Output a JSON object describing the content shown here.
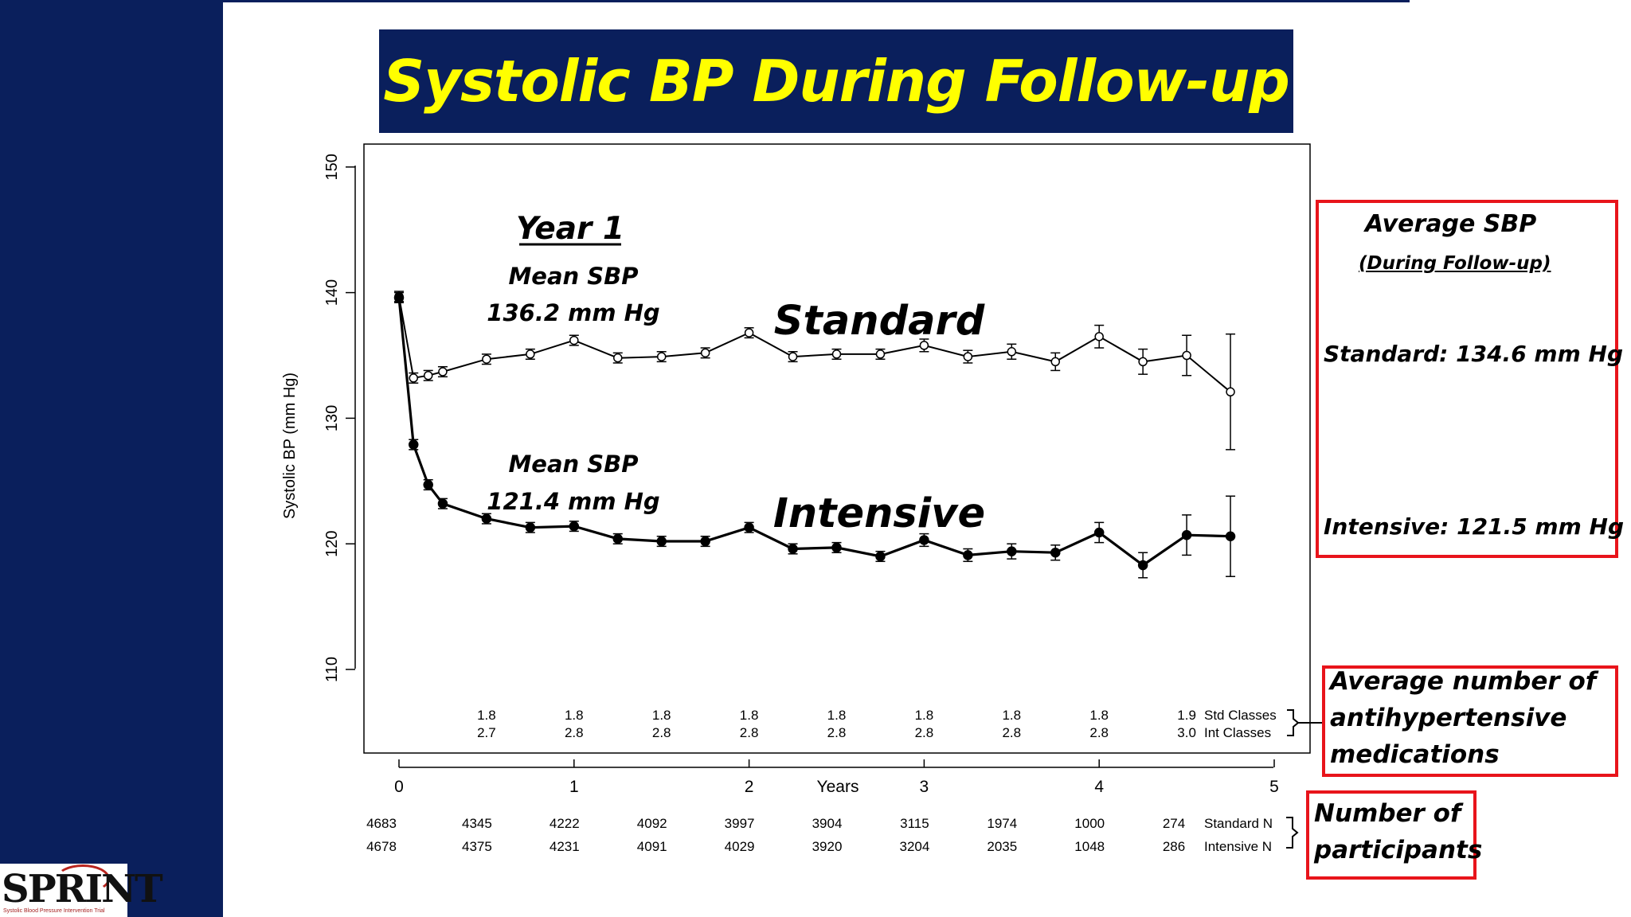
{
  "slide": {
    "title": "Systolic BP During Follow-up",
    "colors": {
      "sidebar": "#0a1f5c",
      "title_text": "#ffff00",
      "callout_border": "#e8141b"
    }
  },
  "annotations": {
    "year1_heading": "Year 1",
    "standard_mean_label": "Mean SBP",
    "standard_mean_value": "136.2 mm Hg",
    "intensive_mean_label": "Mean SBP",
    "intensive_mean_value": "121.4 mm Hg",
    "standard_label": "Standard",
    "intensive_label": "Intensive"
  },
  "callouts": {
    "avg_sbp": {
      "title": "Average SBP",
      "subtitle": "(During Follow-up)",
      "standard": "Standard: 134.6 mm Hg",
      "intensive": "Intensive: 121.5 mm Hg"
    },
    "medications": {
      "line1": "Average number of",
      "line2": "antihypertensive",
      "line3": "medications"
    },
    "participants": {
      "line1": "Number of",
      "line2": "participants"
    }
  },
  "logo": {
    "text": "SPRINT",
    "tagline": "Systolic Blood Pressure Intervention Trial"
  },
  "chart_data": {
    "type": "line",
    "ylabel": "Systolic BP (mm Hg)",
    "xlabel": "Years",
    "ylim": [
      105,
      151
    ],
    "xlim": [
      -0.2,
      5.2
    ],
    "yticks": [
      110,
      120,
      130,
      140,
      150
    ],
    "xticks": [
      0,
      1,
      2,
      3,
      4,
      5
    ],
    "series": [
      {
        "name": "Standard",
        "marker": "open-circle",
        "points": [
          {
            "x": 0,
            "y": 139.7,
            "lo": 139.3,
            "hi": 140.1
          },
          {
            "x": 0.083,
            "y": 133.2,
            "lo": 132.8,
            "hi": 133.6
          },
          {
            "x": 0.167,
            "y": 133.4,
            "lo": 133.0,
            "hi": 133.8
          },
          {
            "x": 0.25,
            "y": 133.7,
            "lo": 133.3,
            "hi": 134.1
          },
          {
            "x": 0.5,
            "y": 134.7,
            "lo": 134.3,
            "hi": 135.1
          },
          {
            "x": 0.75,
            "y": 135.1,
            "lo": 134.7,
            "hi": 135.5
          },
          {
            "x": 1,
            "y": 136.2,
            "lo": 135.8,
            "hi": 136.6
          },
          {
            "x": 1.25,
            "y": 134.8,
            "lo": 134.4,
            "hi": 135.2
          },
          {
            "x": 1.5,
            "y": 134.9,
            "lo": 134.5,
            "hi": 135.3
          },
          {
            "x": 1.75,
            "y": 135.2,
            "lo": 134.8,
            "hi": 135.6
          },
          {
            "x": 2,
            "y": 136.8,
            "lo": 136.4,
            "hi": 137.2
          },
          {
            "x": 2.25,
            "y": 134.9,
            "lo": 134.5,
            "hi": 135.3
          },
          {
            "x": 2.5,
            "y": 135.1,
            "lo": 134.7,
            "hi": 135.5
          },
          {
            "x": 2.75,
            "y": 135.1,
            "lo": 134.7,
            "hi": 135.5
          },
          {
            "x": 3,
            "y": 135.8,
            "lo": 135.3,
            "hi": 136.3
          },
          {
            "x": 3.25,
            "y": 134.9,
            "lo": 134.4,
            "hi": 135.4
          },
          {
            "x": 3.5,
            "y": 135.3,
            "lo": 134.7,
            "hi": 135.9
          },
          {
            "x": 3.75,
            "y": 134.5,
            "lo": 133.8,
            "hi": 135.2
          },
          {
            "x": 4,
            "y": 136.5,
            "lo": 135.6,
            "hi": 137.4
          },
          {
            "x": 4.25,
            "y": 134.5,
            "lo": 133.5,
            "hi": 135.5
          },
          {
            "x": 4.5,
            "y": 135.0,
            "lo": 133.4,
            "hi": 136.6
          },
          {
            "x": 4.75,
            "y": 132.1,
            "lo": 127.5,
            "hi": 136.7
          }
        ]
      },
      {
        "name": "Intensive",
        "marker": "filled-circle",
        "points": [
          {
            "x": 0,
            "y": 139.6,
            "lo": 139.2,
            "hi": 140.0
          },
          {
            "x": 0.083,
            "y": 127.9,
            "lo": 127.5,
            "hi": 128.3
          },
          {
            "x": 0.167,
            "y": 124.7,
            "lo": 124.3,
            "hi": 125.1
          },
          {
            "x": 0.25,
            "y": 123.2,
            "lo": 122.8,
            "hi": 123.6
          },
          {
            "x": 0.5,
            "y": 122.0,
            "lo": 121.6,
            "hi": 122.4
          },
          {
            "x": 0.75,
            "y": 121.3,
            "lo": 120.9,
            "hi": 121.7
          },
          {
            "x": 1,
            "y": 121.4,
            "lo": 121.0,
            "hi": 121.8
          },
          {
            "x": 1.25,
            "y": 120.4,
            "lo": 120.0,
            "hi": 120.8
          },
          {
            "x": 1.5,
            "y": 120.2,
            "lo": 119.8,
            "hi": 120.6
          },
          {
            "x": 1.75,
            "y": 120.2,
            "lo": 119.8,
            "hi": 120.6
          },
          {
            "x": 2,
            "y": 121.3,
            "lo": 120.9,
            "hi": 121.7
          },
          {
            "x": 2.25,
            "y": 119.6,
            "lo": 119.2,
            "hi": 120.0
          },
          {
            "x": 2.5,
            "y": 119.7,
            "lo": 119.3,
            "hi": 120.1
          },
          {
            "x": 2.75,
            "y": 119.0,
            "lo": 118.6,
            "hi": 119.4
          },
          {
            "x": 3,
            "y": 120.3,
            "lo": 119.8,
            "hi": 120.8
          },
          {
            "x": 3.25,
            "y": 119.1,
            "lo": 118.6,
            "hi": 119.6
          },
          {
            "x": 3.5,
            "y": 119.4,
            "lo": 118.8,
            "hi": 120.0
          },
          {
            "x": 3.75,
            "y": 119.3,
            "lo": 118.7,
            "hi": 119.9
          },
          {
            "x": 4,
            "y": 120.9,
            "lo": 120.1,
            "hi": 121.7
          },
          {
            "x": 4.25,
            "y": 118.3,
            "lo": 117.3,
            "hi": 119.3
          },
          {
            "x": 4.5,
            "y": 120.7,
            "lo": 119.1,
            "hi": 122.3
          },
          {
            "x": 4.75,
            "y": 120.6,
            "lo": 117.4,
            "hi": 123.8
          }
        ]
      }
    ],
    "medication_classes": {
      "x": [
        0.5,
        1,
        1.5,
        2,
        2.5,
        3,
        3.5,
        4,
        4.5
      ],
      "std": [
        "1.8",
        "1.8",
        "1.8",
        "1.8",
        "1.8",
        "1.8",
        "1.8",
        "1.8",
        "1.9"
      ],
      "int": [
        "2.7",
        "2.8",
        "2.8",
        "2.8",
        "2.8",
        "2.8",
        "2.8",
        "2.8",
        "3.0"
      ],
      "std_label": "Std Classes",
      "int_label": "Int Classes"
    },
    "participants": {
      "x": [
        0,
        0.5,
        1,
        1.5,
        2,
        2.5,
        3,
        3.5,
        4,
        4.5
      ],
      "standard": [
        "4683",
        "4345",
        "4222",
        "4092",
        "3997",
        "3904",
        "3115",
        "1974",
        "1000",
        "274"
      ],
      "intensive": [
        "4678",
        "4375",
        "4231",
        "4091",
        "4029",
        "3920",
        "3204",
        "2035",
        "1048",
        "286"
      ],
      "standard_label": "Standard N",
      "intensive_label": "Intensive N"
    }
  }
}
